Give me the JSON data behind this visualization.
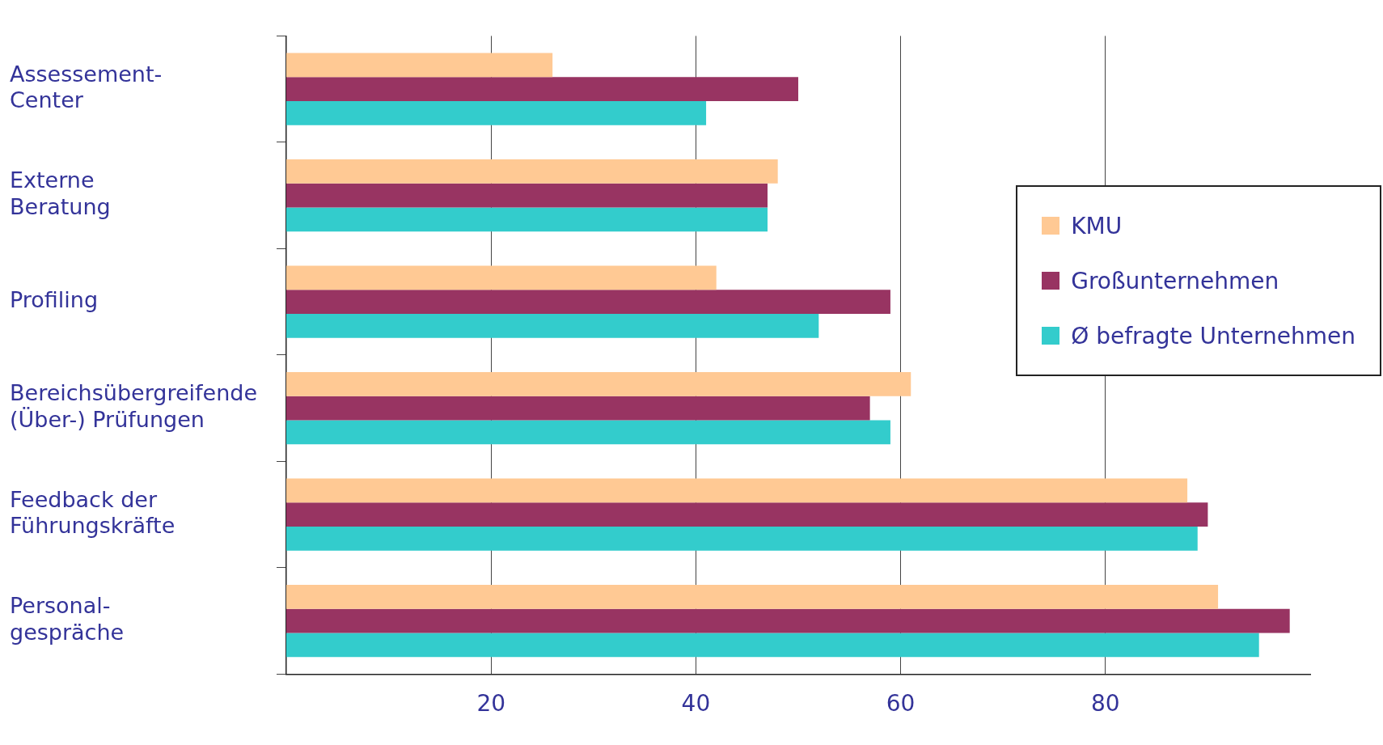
{
  "chart_data": {
    "type": "bar",
    "orientation": "horizontal",
    "categories": [
      "Assessement-Center",
      "Externe Beratung",
      "Profiling",
      "Bereichsübergreifende (Über-) Prüfungen",
      "Feedback der Führungskräfte",
      "Personal-gespräche"
    ],
    "series": [
      {
        "name": "KMU",
        "color": "#ffc994",
        "values": [
          26,
          48,
          42,
          61,
          88,
          91
        ]
      },
      {
        "name": "Großunternehmen",
        "color": "#983462",
        "values": [
          50,
          47,
          59,
          57,
          90,
          98
        ]
      },
      {
        "name": "Ø befragte Unternehmen",
        "color": "#33cccc",
        "values": [
          41,
          47,
          52,
          59,
          89,
          95
        ]
      }
    ],
    "xlim": [
      0,
      100
    ],
    "xticks": [
      20,
      40,
      60,
      80
    ],
    "grid": "x",
    "legend": "right"
  }
}
